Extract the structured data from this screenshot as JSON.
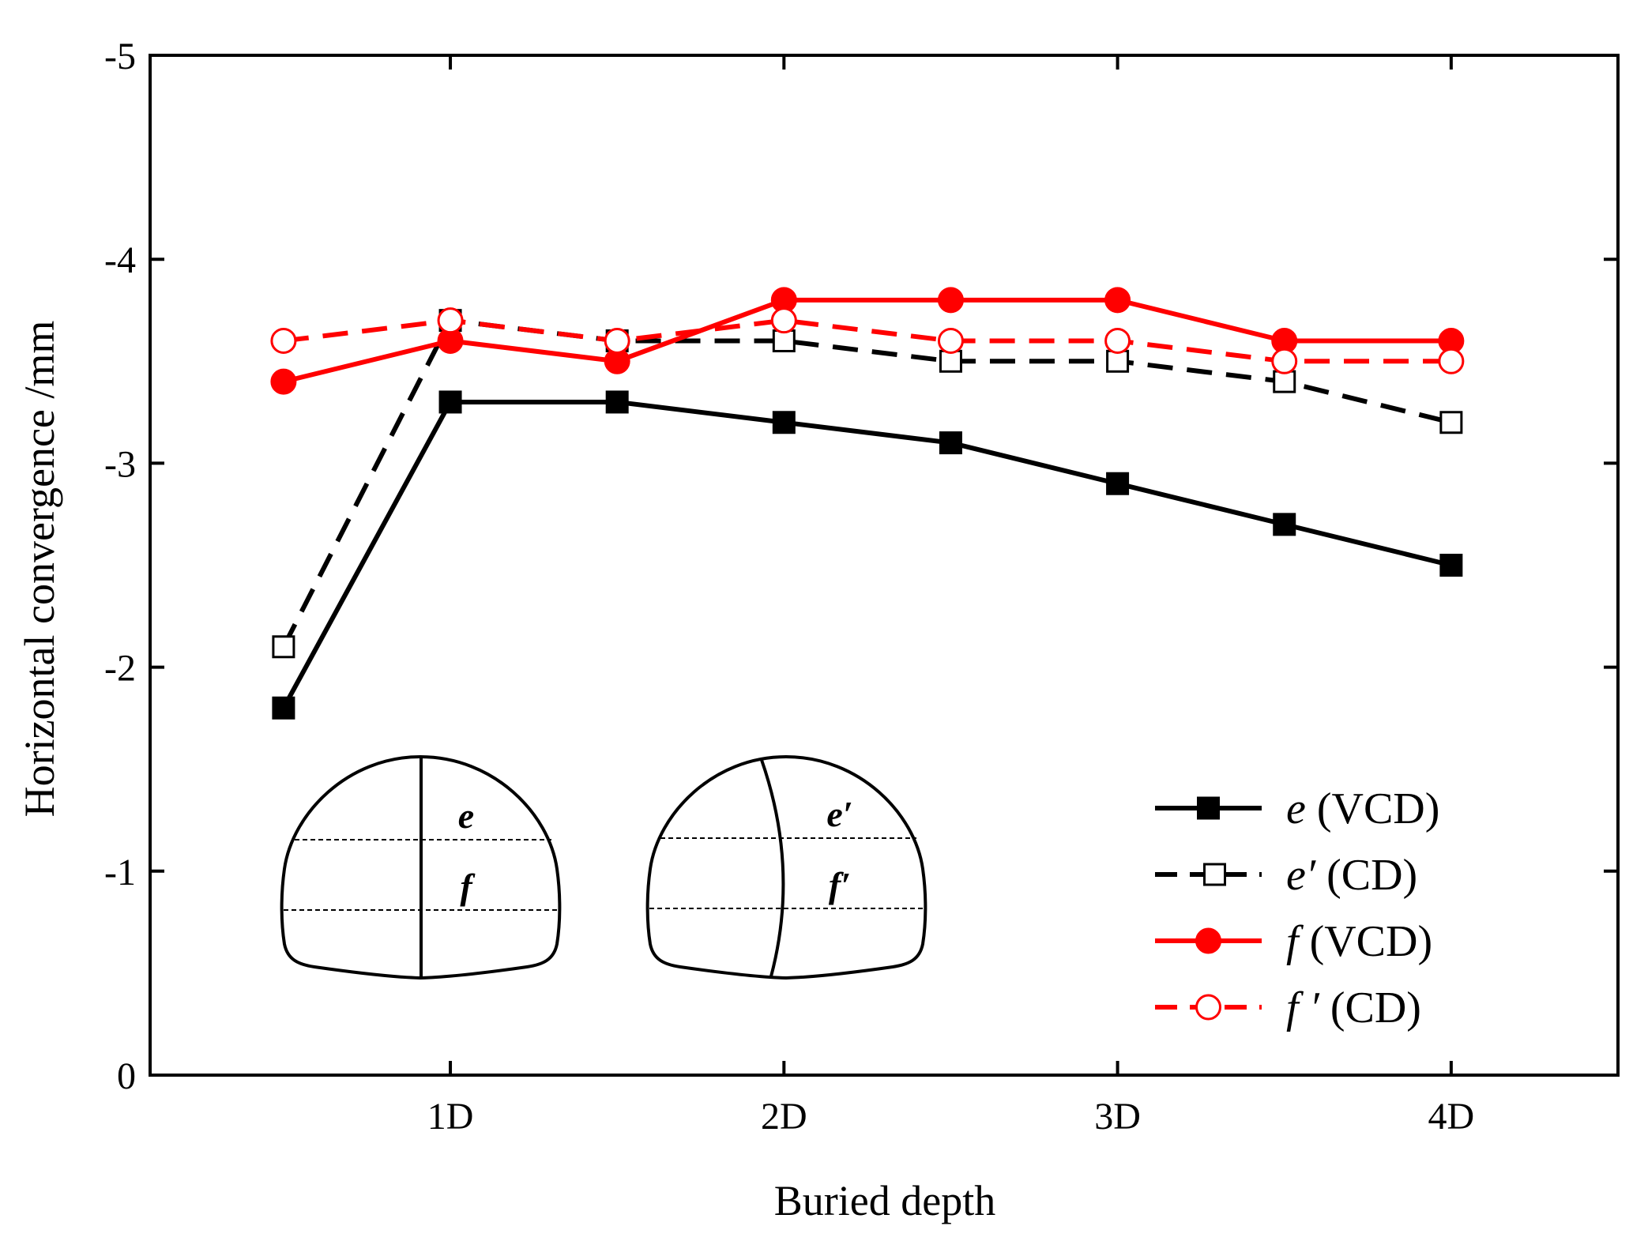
{
  "chart_data": {
    "type": "line",
    "title": "",
    "xlabel": "Buried depth",
    "ylabel": "Horizontal convergence /mm",
    "x": [
      0.5,
      1.0,
      1.5,
      2.0,
      2.5,
      3.0,
      3.5,
      4.0
    ],
    "xlim": [
      0.1,
      4.5
    ],
    "ylim": [
      0,
      -5
    ],
    "x_ticks": [
      1,
      2,
      3,
      4
    ],
    "x_tick_labels": [
      "1D",
      "2D",
      "3D",
      "4D"
    ],
    "y_ticks": [
      0,
      -1,
      -2,
      -3,
      -4,
      -5
    ],
    "y_tick_labels": [
      "0",
      "-1",
      "-2",
      "-3",
      "-4",
      "-5"
    ],
    "grid": false,
    "legend_position": "bottom-right",
    "series": [
      {
        "name": "e (VCD)",
        "symbol": "e",
        "method": "(VCD)",
        "color": "#000000",
        "dash": "solid",
        "marker": "square-filled",
        "values": [
          -1.8,
          -3.3,
          -3.3,
          -3.2,
          -3.1,
          -2.9,
          -2.7,
          -2.5
        ]
      },
      {
        "name": "e' (CD)",
        "symbol": "e′",
        "method": "(CD)",
        "color": "#000000",
        "dash": "dashed",
        "marker": "square-open",
        "values": [
          -2.1,
          -3.7,
          -3.6,
          -3.6,
          -3.5,
          -3.5,
          -3.4,
          -3.2
        ]
      },
      {
        "name": "f (VCD)",
        "symbol": "f",
        "method": "(VCD)",
        "color": "#ff0000",
        "dash": "solid",
        "marker": "circle-filled",
        "values": [
          -3.4,
          -3.6,
          -3.5,
          -3.8,
          -3.8,
          -3.8,
          -3.6,
          -3.6
        ]
      },
      {
        "name": "f' (CD)",
        "symbol": "f ′",
        "method": "(CD)",
        "color": "#ff0000",
        "dash": "dashed",
        "marker": "circle-open",
        "values": [
          -3.6,
          -3.7,
          -3.6,
          -3.7,
          -3.6,
          -3.6,
          -3.5,
          -3.5
        ]
      }
    ],
    "annotations": {
      "vcd_diagram_labels": [
        "e",
        "f"
      ],
      "cd_diagram_labels": [
        "e′",
        "f′"
      ]
    }
  }
}
